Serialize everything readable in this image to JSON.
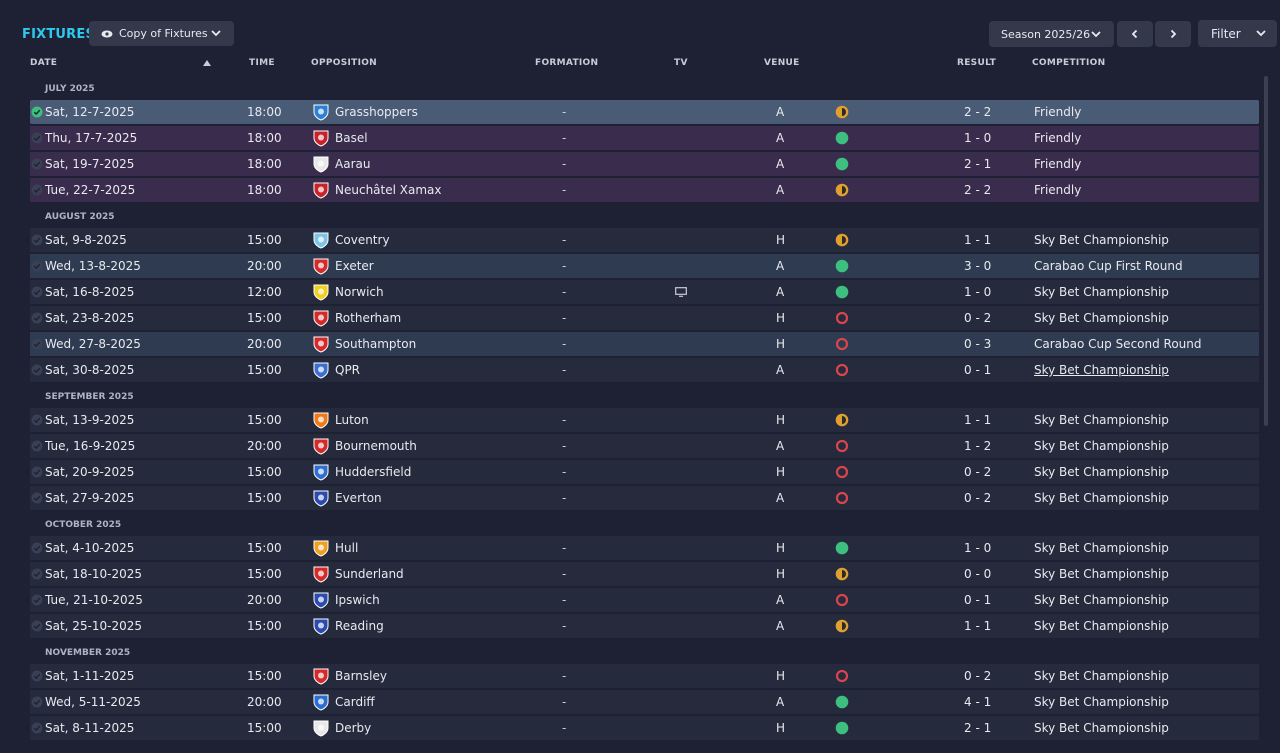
{
  "header": {
    "title": "FIXTURES",
    "view_label": "Copy of Fixtures",
    "season_label": "Season 2025/26",
    "filter_label": "Filter"
  },
  "columns": {
    "date": "DATE",
    "time": "TIME",
    "opposition": "OPPOSITION",
    "formation": "FORMATION",
    "tv": "TV",
    "venue": "VENUE",
    "result": "RESULT",
    "competition": "COMPETITION"
  },
  "colors": {
    "win": "#3dbf7f",
    "draw": "#e0a030",
    "loss": "#d9454d",
    "accent": "#2ec9ef"
  },
  "months": [
    {
      "label": "JULY 2025",
      "fixtures": [
        {
          "date": "Sat, 12-7-2025",
          "time": "18:00",
          "team": "Grasshoppers",
          "badge": "grasshoppers-badge",
          "badge_color": "#2b7fd4",
          "formation": "-",
          "tv": false,
          "venue": "A",
          "outcome": "draw",
          "result": "2 - 2",
          "competition": "Friendly",
          "style": "selected"
        },
        {
          "date": "Thu, 17-7-2025",
          "time": "18:00",
          "team": "Basel",
          "badge": "basel-badge",
          "badge_color": "#c8222a",
          "formation": "-",
          "tv": false,
          "venue": "A",
          "outcome": "win",
          "result": "1 - 0",
          "competition": "Friendly",
          "style": "friendly"
        },
        {
          "date": "Sat, 19-7-2025",
          "time": "18:00",
          "team": "Aarau",
          "badge": "aarau-badge",
          "badge_color": "#e8e8e8",
          "formation": "-",
          "tv": false,
          "venue": "A",
          "outcome": "win",
          "result": "2 - 1",
          "competition": "Friendly",
          "style": "friendly"
        },
        {
          "date": "Tue, 22-7-2025",
          "time": "18:00",
          "team": "Neuchâtel Xamax",
          "badge": "xamax-badge",
          "badge_color": "#c8222a",
          "formation": "-",
          "tv": false,
          "venue": "A",
          "outcome": "draw",
          "result": "2 - 2",
          "competition": "Friendly",
          "style": "friendly"
        }
      ]
    },
    {
      "label": "AUGUST 2025",
      "fixtures": [
        {
          "date": "Sat, 9-8-2025",
          "time": "15:00",
          "team": "Coventry",
          "badge": "coventry-badge",
          "badge_color": "#7cc4e8",
          "formation": "-",
          "tv": false,
          "venue": "H",
          "outcome": "draw",
          "result": "1 - 1",
          "competition": "Sky Bet Championship",
          "style": "normal"
        },
        {
          "date": "Wed, 13-8-2025",
          "time": "20:00",
          "team": "Exeter",
          "badge": "exeter-badge",
          "badge_color": "#d42a2a",
          "formation": "-",
          "tv": false,
          "venue": "A",
          "outcome": "win",
          "result": "3 - 0",
          "competition": "Carabao Cup First Round",
          "style": "cup"
        },
        {
          "date": "Sat, 16-8-2025",
          "time": "12:00",
          "team": "Norwich",
          "badge": "norwich-badge",
          "badge_color": "#f2d01e",
          "formation": "-",
          "tv": true,
          "venue": "A",
          "outcome": "win",
          "result": "1 - 0",
          "competition": "Sky Bet Championship",
          "style": "normal"
        },
        {
          "date": "Sat, 23-8-2025",
          "time": "15:00",
          "team": "Rotherham",
          "badge": "rotherham-badge",
          "badge_color": "#d42a2a",
          "formation": "-",
          "tv": false,
          "venue": "H",
          "outcome": "loss",
          "result": "0 - 2",
          "competition": "Sky Bet Championship",
          "style": "normal"
        },
        {
          "date": "Wed, 27-8-2025",
          "time": "20:00",
          "team": "Southampton",
          "badge": "southampton-badge",
          "badge_color": "#d42a2a",
          "formation": "-",
          "tv": false,
          "venue": "H",
          "outcome": "loss",
          "result": "0 - 3",
          "competition": "Carabao Cup Second Round",
          "style": "cup"
        },
        {
          "date": "Sat, 30-8-2025",
          "time": "15:00",
          "team": "QPR",
          "badge": "qpr-badge",
          "badge_color": "#3a6fd0",
          "formation": "-",
          "tv": false,
          "venue": "A",
          "outcome": "loss",
          "result": "0 - 1",
          "competition": "Sky Bet Championship",
          "style": "normal",
          "link": true
        }
      ]
    },
    {
      "label": "SEPTEMBER 2025",
      "fixtures": [
        {
          "date": "Sat, 13-9-2025",
          "time": "15:00",
          "team": "Luton",
          "badge": "luton-badge",
          "badge_color": "#f07a1a",
          "formation": "-",
          "tv": false,
          "venue": "H",
          "outcome": "draw",
          "result": "1 - 1",
          "competition": "Sky Bet Championship",
          "style": "normal"
        },
        {
          "date": "Tue, 16-9-2025",
          "time": "20:00",
          "team": "Bournemouth",
          "badge": "bournemouth-badge",
          "badge_color": "#d42a2a",
          "formation": "-",
          "tv": false,
          "venue": "A",
          "outcome": "loss",
          "result": "1 - 2",
          "competition": "Sky Bet Championship",
          "style": "normal"
        },
        {
          "date": "Sat, 20-9-2025",
          "time": "15:00",
          "team": "Huddersfield",
          "badge": "huddersfield-badge",
          "badge_color": "#2f6fd0",
          "formation": "-",
          "tv": false,
          "venue": "H",
          "outcome": "loss",
          "result": "0 - 2",
          "competition": "Sky Bet Championship",
          "style": "normal"
        },
        {
          "date": "Sat, 27-9-2025",
          "time": "15:00",
          "team": "Everton",
          "badge": "everton-badge",
          "badge_color": "#2a4bb0",
          "formation": "-",
          "tv": false,
          "venue": "A",
          "outcome": "loss",
          "result": "0 - 2",
          "competition": "Sky Bet Championship",
          "style": "normal"
        }
      ]
    },
    {
      "label": "OCTOBER 2025",
      "fixtures": [
        {
          "date": "Sat, 4-10-2025",
          "time": "15:00",
          "team": "Hull",
          "badge": "hull-badge",
          "badge_color": "#f0a020",
          "formation": "-",
          "tv": false,
          "venue": "H",
          "outcome": "win",
          "result": "1 - 0",
          "competition": "Sky Bet Championship",
          "style": "normal"
        },
        {
          "date": "Sat, 18-10-2025",
          "time": "15:00",
          "team": "Sunderland",
          "badge": "sunderland-badge",
          "badge_color": "#d42a2a",
          "formation": "-",
          "tv": false,
          "venue": "H",
          "outcome": "draw",
          "result": "0 - 0",
          "competition": "Sky Bet Championship",
          "style": "normal"
        },
        {
          "date": "Tue, 21-10-2025",
          "time": "20:00",
          "team": "Ipswich",
          "badge": "ipswich-badge",
          "badge_color": "#2a4bb0",
          "formation": "-",
          "tv": false,
          "venue": "A",
          "outcome": "loss",
          "result": "0 - 1",
          "competition": "Sky Bet Championship",
          "style": "normal"
        },
        {
          "date": "Sat, 25-10-2025",
          "time": "15:00",
          "team": "Reading",
          "badge": "reading-badge",
          "badge_color": "#2a4bb0",
          "formation": "-",
          "tv": false,
          "venue": "A",
          "outcome": "draw",
          "result": "1 - 1",
          "competition": "Sky Bet Championship",
          "style": "normal"
        }
      ]
    },
    {
      "label": "NOVEMBER 2025",
      "fixtures": [
        {
          "date": "Sat, 1-11-2025",
          "time": "15:00",
          "team": "Barnsley",
          "badge": "barnsley-badge",
          "badge_color": "#d42a2a",
          "formation": "-",
          "tv": false,
          "venue": "H",
          "outcome": "loss",
          "result": "0 - 2",
          "competition": "Sky Bet Championship",
          "style": "normal"
        },
        {
          "date": "Wed, 5-11-2025",
          "time": "20:00",
          "team": "Cardiff",
          "badge": "cardiff-badge",
          "badge_color": "#2a6fd0",
          "formation": "-",
          "tv": false,
          "venue": "A",
          "outcome": "win",
          "result": "4 - 1",
          "competition": "Sky Bet Championship",
          "style": "normal"
        },
        {
          "date": "Sat, 8-11-2025",
          "time": "15:00",
          "team": "Derby",
          "badge": "derby-badge",
          "badge_color": "#e8e8e8",
          "formation": "-",
          "tv": false,
          "venue": "H",
          "outcome": "win",
          "result": "2 - 1",
          "competition": "Sky Bet Championship",
          "style": "normal"
        }
      ]
    }
  ]
}
